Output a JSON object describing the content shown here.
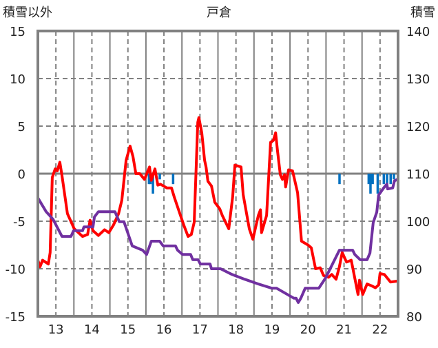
{
  "chart_data": {
    "type": "line",
    "title": "戸倉",
    "ylabel_left": "積雪以外",
    "ylabel_right": "積雪",
    "xlim": [
      12.5,
      22.5
    ],
    "ylim_left": [
      -15,
      15
    ],
    "ylim_right": [
      80,
      140
    ],
    "x_ticks": [
      "13",
      "14",
      "15",
      "16",
      "17",
      "18",
      "19",
      "20",
      "21",
      "22"
    ],
    "y_ticks_left": [
      "15",
      "10",
      "5",
      "0",
      "-5",
      "-10",
      "-15"
    ],
    "y_ticks_right": [
      "140",
      "130",
      "120",
      "110",
      "100",
      "90",
      "80"
    ],
    "grid": true,
    "colors": {
      "red": "#ff0000",
      "purple": "#7030a0",
      "blue": "#0070c0",
      "axis": "#808080"
    },
    "series": [
      {
        "name": "red",
        "axis": "left",
        "x": [
          12.5,
          12.56,
          12.63,
          12.79,
          12.84,
          12.9,
          12.98,
          13.04,
          13.11,
          13.17,
          13.32,
          13.51,
          13.74,
          13.88,
          13.95,
          14.03,
          14.18,
          14.35,
          14.47,
          14.6,
          14.74,
          14.83,
          14.95,
          15.06,
          15.14,
          15.22,
          15.33,
          15.46,
          15.6,
          15.65,
          15.75,
          15.83,
          15.9,
          16.08,
          16.21,
          16.29,
          16.55,
          16.67,
          16.76,
          16.84,
          16.94,
          16.97,
          17.05,
          17.13,
          17.17,
          17.22,
          17.32,
          17.41,
          17.55,
          17.62,
          17.8,
          17.91,
          17.97,
          18.14,
          18.2,
          18.37,
          18.47,
          18.62,
          18.68,
          18.71,
          18.85,
          18.96,
          19.04,
          19.1,
          19.15,
          19.23,
          19.29,
          19.35,
          19.38,
          19.46,
          19.57,
          19.71,
          19.82,
          20.0,
          20.09,
          20.21,
          20.34,
          20.43,
          20.57,
          20.66,
          20.78,
          20.87,
          20.95,
          21.07,
          21.2,
          21.39,
          21.43,
          21.52,
          21.64,
          21.77,
          21.87,
          21.96,
          22.0,
          22.12,
          22.29,
          22.48
        ],
        "y": [
          -9.1,
          -9.8,
          -9.1,
          -9.5,
          -8.3,
          -0.4,
          0.5,
          0.3,
          1.2,
          -0.2,
          -4.2,
          -5.8,
          -6.6,
          -6.4,
          -4.9,
          -6.0,
          -6.5,
          -5.9,
          -6.2,
          -5.4,
          -4.2,
          -2.8,
          1.4,
          2.9,
          1.8,
          0.0,
          0.0,
          -0.6,
          0.7,
          -0.7,
          0.5,
          -1.2,
          -1.1,
          -1.5,
          -1.5,
          -2.5,
          -5.4,
          -6.6,
          -6.4,
          -5.1,
          5.4,
          5.9,
          4.3,
          1.4,
          0.7,
          -0.8,
          -1.3,
          -3.0,
          -3.7,
          -4.4,
          -5.8,
          -2.4,
          0.9,
          0.7,
          -2.2,
          -5.8,
          -6.9,
          -4.4,
          -3.8,
          -6.2,
          -4.4,
          3.3,
          3.5,
          4.3,
          2.5,
          -0.1,
          -0.6,
          -0.1,
          -1.4,
          0.4,
          0.3,
          -2.0,
          -7.1,
          -7.5,
          -7.8,
          -10.0,
          -9.9,
          -10.7,
          -10.9,
          -10.6,
          -11.1,
          -9.8,
          -8.3,
          -9.3,
          -9.1,
          -12.7,
          -11.2,
          -12.7,
          -11.6,
          -11.8,
          -12.0,
          -11.7,
          -10.5,
          -10.6,
          -11.4,
          -11.3
        ]
      },
      {
        "name": "purple",
        "axis": "right",
        "x": [
          12.5,
          12.73,
          12.92,
          13.17,
          13.42,
          13.49,
          13.74,
          13.78,
          14.03,
          14.07,
          14.18,
          14.64,
          14.76,
          14.89,
          15.12,
          15.41,
          15.52,
          15.65,
          15.88,
          15.98,
          16.32,
          16.38,
          16.52,
          16.74,
          16.8,
          16.95,
          17.01,
          17.28,
          17.32,
          17.53,
          17.57,
          17.89,
          18.24,
          18.62,
          19.0,
          19.13,
          19.61,
          19.67,
          19.73,
          19.8,
          19.92,
          20.3,
          20.49,
          20.66,
          20.87,
          21.24,
          21.3,
          21.45,
          21.64,
          21.72,
          21.81,
          21.91,
          21.96,
          22.1,
          22.19,
          22.21,
          22.35,
          22.4,
          22.48
        ],
        "y": [
          104.9,
          102.0,
          100.4,
          96.8,
          96.8,
          98.0,
          98.0,
          98.8,
          98.8,
          100.9,
          102.0,
          102.0,
          99.9,
          99.9,
          94.8,
          93.9,
          93.0,
          95.8,
          95.8,
          94.8,
          94.8,
          93.9,
          93.0,
          93.0,
          91.9,
          91.9,
          91.0,
          91.0,
          90.0,
          90.0,
          90.0,
          88.8,
          87.8,
          86.8,
          85.9,
          85.9,
          83.8,
          83.8,
          82.9,
          83.8,
          85.9,
          85.9,
          88.1,
          90.7,
          93.9,
          93.9,
          93.0,
          91.9,
          91.9,
          93.3,
          99.7,
          101.9,
          105.5,
          107.0,
          107.8,
          106.8,
          107.0,
          108.5,
          108.8
        ]
      },
      {
        "name": "blue",
        "type": "bar",
        "axis": "right",
        "base": 110,
        "x": [
          15.58,
          15.62,
          15.69,
          15.88,
          16.25,
          20.87,
          21.68,
          21.73,
          21.79,
          21.93,
          22.1,
          22.19,
          22.29,
          22.38
        ],
        "y": [
          107.8,
          107.8,
          105.8,
          108.8,
          107.8,
          107.8,
          107.8,
          105.8,
          107.8,
          105.8,
          107.8,
          107.8,
          107.8,
          108.8
        ]
      }
    ]
  }
}
